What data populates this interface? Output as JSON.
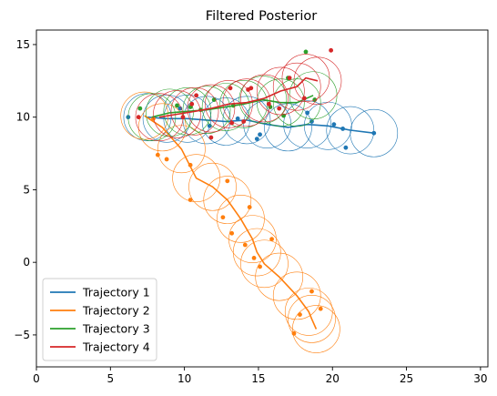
{
  "chart_data": {
    "type": "scatter",
    "title": "Filtered Posterior",
    "xlabel": "",
    "ylabel": "",
    "xlim": [
      0,
      30.5
    ],
    "ylim": [
      -7.2,
      16.0
    ],
    "xticks": [
      0,
      5,
      10,
      15,
      20,
      25,
      30
    ],
    "yticks": [
      -5,
      0,
      5,
      10,
      15
    ],
    "grid": false,
    "legend_position": "lower-left",
    "circle_radius": 1.6,
    "series": [
      {
        "name": "Trajectory 1",
        "color": "#1f77b4",
        "filtered": [
          [
            7.5,
            10.0
          ],
          [
            8.8,
            9.9
          ],
          [
            10.2,
            9.9
          ],
          [
            11.5,
            9.8
          ],
          [
            12.8,
            9.7
          ],
          [
            14.2,
            9.8
          ],
          [
            15.6,
            9.5
          ],
          [
            17.0,
            9.3
          ],
          [
            18.3,
            9.5
          ],
          [
            19.7,
            9.4
          ],
          [
            21.2,
            9.1
          ],
          [
            22.8,
            8.9
          ]
        ],
        "observations": [
          [
            6.2,
            10.0
          ],
          [
            9.7,
            10.6
          ],
          [
            11.7,
            9.4
          ],
          [
            13.6,
            9.9
          ],
          [
            15.1,
            8.8
          ],
          [
            14.9,
            8.5
          ],
          [
            18.3,
            10.3
          ],
          [
            18.6,
            9.7
          ],
          [
            20.1,
            9.5
          ],
          [
            20.7,
            9.2
          ],
          [
            20.9,
            7.9
          ],
          [
            22.8,
            8.9
          ]
        ]
      },
      {
        "name": "Trajectory 2",
        "color": "#ff7f0e",
        "filtered": [
          [
            7.3,
            10.1
          ],
          [
            8.5,
            9.3
          ],
          [
            9.8,
            7.8
          ],
          [
            10.8,
            5.8
          ],
          [
            11.9,
            5.2
          ],
          [
            12.9,
            4.3
          ],
          [
            13.8,
            3.0
          ],
          [
            14.6,
            1.6
          ],
          [
            14.9,
            0.7
          ],
          [
            15.4,
            -0.1
          ],
          [
            16.4,
            -1.0
          ],
          [
            17.6,
            -2.3
          ],
          [
            18.4,
            -3.4
          ],
          [
            18.6,
            -3.9
          ],
          [
            18.9,
            -4.6
          ]
        ],
        "observations": [
          [
            7.9,
            9.9
          ],
          [
            8.2,
            7.4
          ],
          [
            8.8,
            7.1
          ],
          [
            10.4,
            6.7
          ],
          [
            10.4,
            4.3
          ],
          [
            12.9,
            5.6
          ],
          [
            12.6,
            3.1
          ],
          [
            14.4,
            3.8
          ],
          [
            13.2,
            2.0
          ],
          [
            15.9,
            1.6
          ],
          [
            14.1,
            1.2
          ],
          [
            14.7,
            0.3
          ],
          [
            15.1,
            -0.3
          ],
          [
            18.6,
            -2.0
          ],
          [
            17.8,
            -3.6
          ],
          [
            19.2,
            -3.2
          ],
          [
            17.4,
            -4.9
          ]
        ]
      },
      {
        "name": "Trajectory 3",
        "color": "#2ca02c",
        "filtered": [
          [
            7.8,
            10.0
          ],
          [
            9.0,
            10.3
          ],
          [
            10.2,
            10.4
          ],
          [
            11.5,
            10.5
          ],
          [
            12.8,
            10.7
          ],
          [
            14.0,
            10.9
          ],
          [
            15.3,
            11.2
          ],
          [
            16.5,
            11.0
          ],
          [
            17.6,
            11.0
          ],
          [
            18.7,
            11.5
          ]
        ],
        "observations": [
          [
            7.0,
            10.6
          ],
          [
            9.5,
            10.8
          ],
          [
            10.4,
            10.7
          ],
          [
            11.1,
            10.5
          ],
          [
            12.0,
            11.2
          ],
          [
            13.3,
            10.8
          ],
          [
            15.8,
            10.7
          ],
          [
            16.7,
            10.1
          ],
          [
            17.0,
            12.7
          ],
          [
            18.8,
            11.2
          ],
          [
            18.2,
            14.5
          ]
        ]
      },
      {
        "name": "Trajectory 4",
        "color": "#d62728",
        "filtered": [
          [
            8.3,
            10.0
          ],
          [
            9.5,
            10.2
          ],
          [
            10.7,
            10.4
          ],
          [
            11.8,
            10.6
          ],
          [
            13.0,
            10.9
          ],
          [
            14.2,
            11.0
          ],
          [
            15.4,
            11.3
          ],
          [
            16.5,
            11.8
          ],
          [
            17.6,
            12.1
          ],
          [
            18.2,
            12.7
          ],
          [
            19.0,
            12.5
          ]
        ],
        "observations": [
          [
            6.9,
            10.0
          ],
          [
            9.9,
            10.0
          ],
          [
            10.5,
            10.9
          ],
          [
            10.8,
            11.5
          ],
          [
            11.8,
            8.6
          ],
          [
            13.1,
            12.0
          ],
          [
            13.2,
            9.6
          ],
          [
            14.0,
            9.7
          ],
          [
            14.3,
            11.9
          ],
          [
            14.5,
            12.0
          ],
          [
            15.7,
            10.9
          ],
          [
            16.4,
            10.6
          ],
          [
            17.1,
            12.7
          ],
          [
            18.1,
            11.3
          ],
          [
            19.9,
            14.6
          ]
        ]
      }
    ]
  }
}
